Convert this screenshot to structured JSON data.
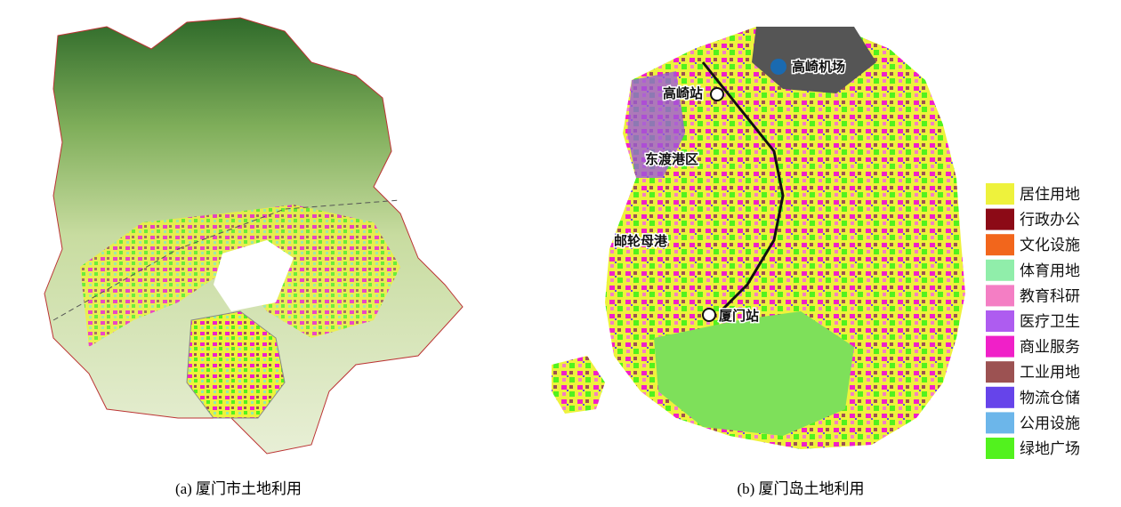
{
  "panels": [
    {
      "caption": "(a) 厦门市土地利用"
    },
    {
      "caption": "(b) 厦门岛土地利用",
      "labels": [
        "高崎机场",
        "高崎站",
        "东渡港区",
        "邮轮母港",
        "厦门站"
      ]
    }
  ],
  "legend": {
    "items": [
      {
        "label": "居住用地",
        "color": "#eef23c"
      },
      {
        "label": "行政办公",
        "color": "#8c0a16"
      },
      {
        "label": "文化设施",
        "color": "#f2661c"
      },
      {
        "label": "体育用地",
        "color": "#90eeaa"
      },
      {
        "label": "教育科研",
        "color": "#f47ec4"
      },
      {
        "label": "医疗卫生",
        "color": "#ae5cf0"
      },
      {
        "label": "商业服务",
        "color": "#f020c8"
      },
      {
        "label": "工业用地",
        "color": "#9c5252"
      },
      {
        "label": "物流仓储",
        "color": "#6644ea"
      },
      {
        "label": "公用设施",
        "color": "#6cb6ea"
      },
      {
        "label": "绿地广场",
        "color": "#52f21e"
      }
    ]
  }
}
